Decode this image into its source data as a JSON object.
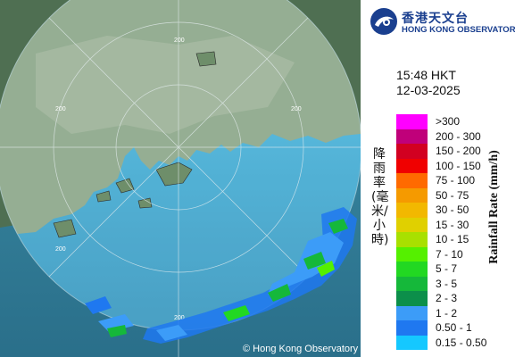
{
  "logo": {
    "chinese_name": "香港天文台",
    "english_name": "HONG KONG OBSERVATORY",
    "icon": "hko-logo-icon"
  },
  "time": {
    "clock": "15:48 HKT",
    "date": "12-03-2025"
  },
  "legend": {
    "title_english": "Rainfall Rate (mm/h)",
    "title_chinese": "降雨率(毫米/小時)",
    "items": [
      {
        "label": ">300",
        "color": "#ff00ff"
      },
      {
        "label": "200 - 300",
        "color": "#c0007a"
      },
      {
        "label": "150 - 200",
        "color": "#d20021"
      },
      {
        "label": "100 - 150",
        "color": "#f00000"
      },
      {
        "label": "75 - 100",
        "color": "#ff6a00"
      },
      {
        "label": "50 - 75",
        "color": "#f59a00"
      },
      {
        "label": "30 - 50",
        "color": "#f2b800"
      },
      {
        "label": "15 - 30",
        "color": "#e0d000"
      },
      {
        "label": "10 - 15",
        "color": "#a8e000"
      },
      {
        "label": "7 - 10",
        "color": "#55f000"
      },
      {
        "label": "5 - 7",
        "color": "#22d822"
      },
      {
        "label": "3 - 5",
        "color": "#15b83a"
      },
      {
        "label": "2 - 3",
        "color": "#0c8f4a"
      },
      {
        "label": "1 - 2",
        "color": "#3c9cf8"
      },
      {
        "label": "0.50 - 1",
        "color": "#1f78f0"
      },
      {
        "label": "0.15 - 0.50",
        "color": "#15c8ff"
      }
    ]
  },
  "map": {
    "range_rings": [
      "200",
      "200",
      "200",
      "200",
      "200"
    ],
    "copyright": "© Hong Kong Observatory"
  }
}
